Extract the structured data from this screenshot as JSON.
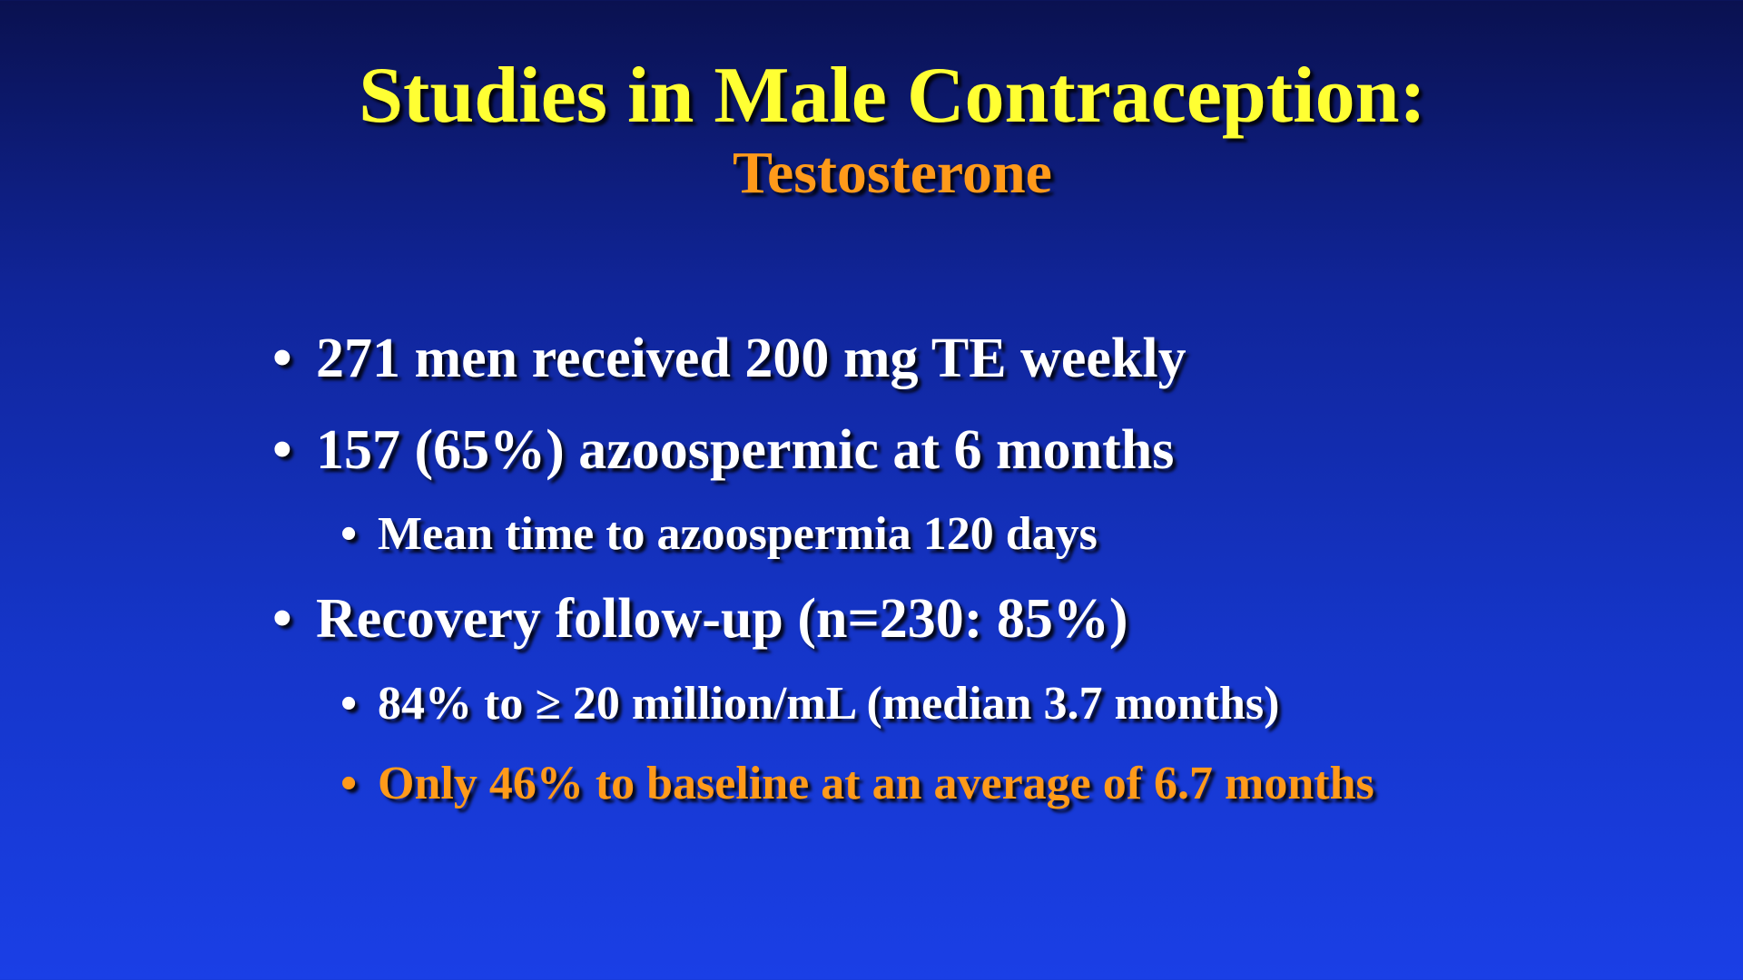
{
  "header": {
    "title": "Studies in Male Contraception:",
    "subtitle": "Testosterone"
  },
  "bullets": [
    {
      "text": "271 men received 200 mg TE weekly",
      "sub": []
    },
    {
      "text": "157 (65%) azoospermic at 6 months",
      "sub": [
        "Mean time to azoospermia 120 days"
      ]
    },
    {
      "text": "Recovery follow-up (n=230: 85%)",
      "sub": [
        "84% to ≥ 20 million/mL (median 3.7 months)",
        "Only 46% to baseline at an average of 6.7 months"
      ]
    }
  ]
}
